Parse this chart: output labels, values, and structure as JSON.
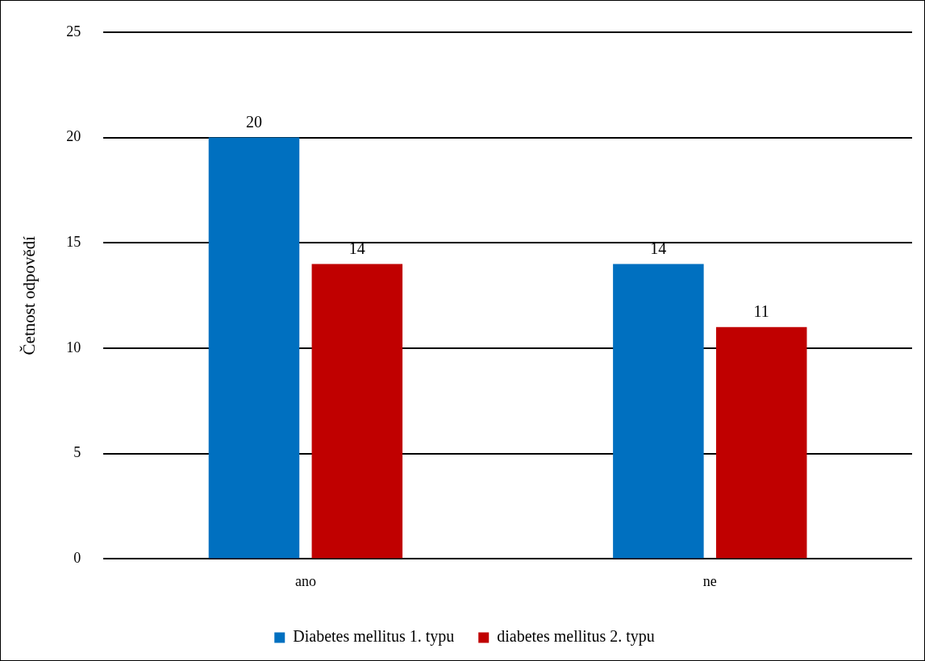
{
  "chart_data": {
    "type": "bar",
    "ylabel": "Četnost odpovědí",
    "categories": [
      "ano",
      "ne"
    ],
    "series": [
      {
        "name": "Diabetes mellitus 1. typu",
        "color": "#0070c0",
        "values": [
          20,
          14
        ]
      },
      {
        "name": "diabetes mellitus 2. typu",
        "color": "#c00000",
        "values": [
          14,
          11
        ]
      }
    ],
    "ylim": [
      0,
      25
    ],
    "yticks": [
      0,
      5,
      10,
      15,
      20,
      25
    ],
    "grid": "y",
    "legend": "bottom",
    "data_labels": true
  }
}
